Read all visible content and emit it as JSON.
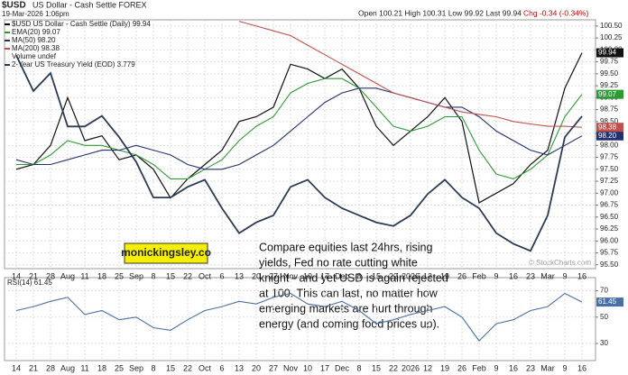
{
  "chart_data": [
    {
      "type": "stock",
      "title": "$USD",
      "subtitle": "US Dollar - Cash Settle FOREX",
      "date": "19-Mar-2026 1:06pm",
      "quote": "Open 100.21 High 100.31 Low 99.92 Last 99.94",
      "change": "Chg -0.34 (-0.34%)",
      "credit": "© StockCharts.com",
      "categories": [
        "14",
        "21",
        "28",
        "Aug",
        "11",
        "18",
        "25",
        "Sep",
        "8",
        "15",
        "22",
        "Oct",
        "6",
        "13",
        "20",
        "27",
        "Nov",
        "10",
        "17",
        "Dec",
        "8",
        "15",
        "22",
        "2026",
        "12",
        "19",
        "26",
        "Feb",
        "9",
        "16",
        "23",
        "Mar",
        "9",
        "16"
      ],
      "ylim": [
        95.42,
        100.63
      ],
      "yticks": [
        {
          "value": 95.5,
          "label": "95.50"
        },
        95.75,
        {
          "value": 96,
          "label": "96.00"
        },
        96.25,
        {
          "value": 96.5,
          "label": "96.50"
        },
        96.75,
        {
          "value": 97,
          "label": "97.00"
        },
        97.25,
        {
          "value": 97.5,
          "label": "97.50"
        },
        97.75,
        {
          "value": 98,
          "label": "98.00"
        },
        98.25,
        {
          "value": 98.5,
          "label": "98.50"
        },
        98.75,
        {
          "value": 99,
          "label": "99.00"
        },
        99.25,
        {
          "value": 99.5,
          "label": "99.50"
        },
        99.75,
        {
          "value": 100,
          "label": "100.00"
        },
        100.25,
        {
          "value": 100.5,
          "label": "100.50"
        }
      ],
      "y2lim": [
        3.35,
        4.05
      ],
      "grid": true,
      "legend_extra": "Volume undef",
      "series": [
        {
          "name": "$USD US Dollar - Cash Settle (Daily) 99.94",
          "color": "#111111",
          "last": 99.94,
          "values": [
            97.5,
            97.6,
            98.0,
            99.0,
            98.1,
            98.2,
            97.7,
            97.8,
            97.5,
            96.9,
            97.3,
            97.6,
            97.9,
            98.5,
            98.6,
            98.8,
            99.7,
            99.6,
            99.4,
            99.6,
            99.2,
            98.4,
            98.0,
            98.3,
            98.6,
            99.0,
            98.5,
            96.8,
            97.0,
            97.2,
            97.6,
            97.9,
            99.2,
            99.94
          ]
        },
        {
          "name": "EMA(20) 99.07",
          "color": "#2e9a36",
          "last": 99.07,
          "values": [
            97.6,
            97.6,
            97.8,
            98.1,
            98.0,
            98.0,
            97.9,
            97.8,
            97.6,
            97.3,
            97.3,
            97.5,
            97.7,
            98.1,
            98.4,
            98.6,
            99.1,
            99.3,
            99.4,
            99.4,
            99.2,
            98.8,
            98.4,
            98.3,
            98.4,
            98.6,
            98.6,
            97.9,
            97.4,
            97.3,
            97.5,
            97.8,
            98.6,
            99.07
          ]
        },
        {
          "name": "MA(50) 98.20",
          "color": "#23306e",
          "last": 98.2,
          "value_labels": {
            "last": "98.20"
          },
          "values": [
            97.7,
            97.6,
            97.6,
            97.7,
            97.8,
            97.9,
            97.9,
            98.0,
            97.9,
            97.8,
            97.6,
            97.5,
            97.5,
            97.6,
            97.8,
            98.0,
            98.3,
            98.6,
            98.9,
            99.1,
            99.2,
            99.2,
            99.1,
            99.0,
            98.9,
            98.8,
            98.8,
            98.6,
            98.3,
            98.1,
            97.9,
            97.8,
            98.0,
            98.2
          ]
        },
        {
          "name": "MA(200) 98.38",
          "color": "#c0504d",
          "last": 98.38,
          "values": [
            null,
            null,
            null,
            null,
            null,
            null,
            null,
            null,
            null,
            null,
            null,
            null,
            null,
            100.6,
            100.5,
            100.4,
            100.3,
            100.1,
            99.9,
            99.7,
            99.5,
            99.3,
            99.1,
            99.0,
            98.9,
            98.8,
            98.7,
            98.65,
            98.6,
            98.5,
            98.45,
            98.4,
            98.4,
            98.38
          ]
        },
        {
          "name": "2-Year US Treasury Yield (EOD) 3.779",
          "color": "#2b3a55",
          "axis": "y2",
          "values": [
            3.95,
            3.85,
            3.9,
            3.75,
            3.75,
            3.78,
            3.72,
            3.65,
            3.55,
            3.55,
            3.58,
            3.6,
            3.52,
            3.45,
            3.48,
            3.5,
            3.58,
            3.6,
            3.55,
            3.52,
            3.5,
            3.48,
            3.47,
            3.5,
            3.56,
            3.6,
            3.55,
            3.52,
            3.45,
            3.42,
            3.4,
            3.5,
            3.72,
            3.779
          ]
        }
      ],
      "annotation_box": "monickingsley.co",
      "annotation": [
        "Compare equities last 24hrs, rising",
        "yields, Fed no rate cutting white",
        "knight - and yet USD is again rejected",
        "at 100. This can last, no matter how",
        "emerging markets are hurt through",
        "energy (and coming food prices up)."
      ]
    },
    {
      "type": "line",
      "categories": [
        "14",
        "21",
        "28",
        "Aug",
        "11",
        "18",
        "25",
        "Sep",
        "8",
        "15",
        "22",
        "Oct",
        "6",
        "13",
        "20",
        "27",
        "Nov",
        "10",
        "17",
        "Dec",
        "8",
        "15",
        "22",
        "2026",
        "12",
        "19",
        "26",
        "Feb",
        "9",
        "16",
        "23",
        "Mar",
        "9",
        "16"
      ],
      "ylim": [
        17,
        80
      ],
      "yticks": [
        70,
        50,
        30
      ],
      "grid": true,
      "series": [
        {
          "name": "RSI(14) 61.45",
          "color": "#4a6fa5",
          "last": 61.45,
          "values": [
            55,
            58,
            62,
            65,
            52,
            55,
            48,
            50,
            42,
            40,
            48,
            55,
            58,
            62,
            60,
            65,
            68,
            60,
            58,
            62,
            55,
            45,
            48,
            52,
            55,
            58,
            50,
            32,
            45,
            48,
            55,
            58,
            68,
            61.45
          ]
        }
      ]
    }
  ]
}
